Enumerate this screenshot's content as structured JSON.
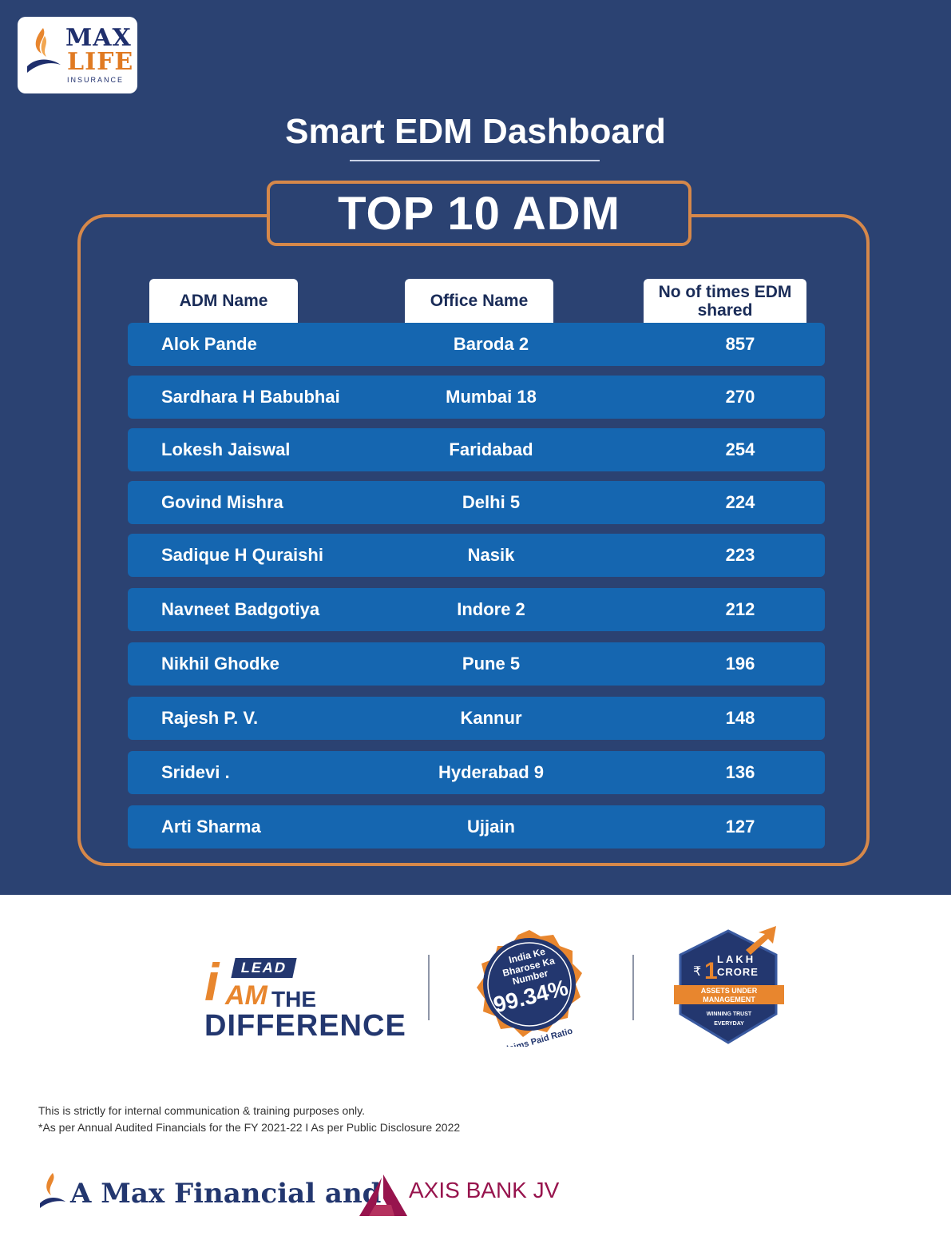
{
  "brand": {
    "logo_line1": "MAX",
    "logo_line2": "LIFE",
    "logo_line3": "INSURANCE"
  },
  "page_title": "Smart EDM Dashboard",
  "banner": "TOP 10 ADM",
  "table": {
    "headers": [
      "ADM Name",
      "Office Name",
      "No of times EDM shared"
    ],
    "rows": [
      {
        "name": "Alok Pande",
        "office": "Baroda 2",
        "count": "857"
      },
      {
        "name": "Sardhara H Babubhai",
        "office": "Mumbai 18",
        "count": "270"
      },
      {
        "name": "Lokesh Jaiswal",
        "office": "Faridabad",
        "count": "254"
      },
      {
        "name": "Govind Mishra",
        "office": "Delhi 5",
        "count": "224"
      },
      {
        "name": "Sadique H Quraishi",
        "office": "Nasik",
        "count": "223"
      },
      {
        "name": "Navneet Badgotiya",
        "office": "Indore 2",
        "count": "212"
      },
      {
        "name": "Nikhil Ghodke",
        "office": "Pune 5",
        "count": "196"
      },
      {
        "name": "Rajesh P. V.",
        "office": "Kannur",
        "count": "148"
      },
      {
        "name": "Sridevi .",
        "office": "Hyderabad 9",
        "count": "136"
      },
      {
        "name": "Arti Sharma",
        "office": "Ujjain",
        "count": "127"
      }
    ]
  },
  "campaign": {
    "badge": "LEAD",
    "i": "i",
    "am": "AM",
    "the": "THE",
    "difference": "DIFFERENCE"
  },
  "seal": {
    "line1": "India Ke",
    "line2": "Bharose Ka",
    "line3": "Number",
    "value": "99.34%",
    "caption": "Claims Paid Ratio"
  },
  "aum": {
    "currency": "₹",
    "amount": "1",
    "unit1": "LAKH",
    "unit2": "CRORE",
    "band1": "ASSETS UNDER",
    "band2": "MANAGEMENT",
    "tag1": "WINNING TRUST",
    "tag2": "EVERYDAY"
  },
  "disclaimer": {
    "line1": "This is strictly for internal communication & training purposes only.",
    "line2": "*As per Annual Audited Financials for the FY 2021-22 I As per Public Disclosure 2022"
  },
  "jv": {
    "text": "A Max Financial and",
    "partner": "AXIS BANK JV"
  },
  "colors": {
    "background": "#2b4272",
    "accent": "#d6884a",
    "row": "#1566b0"
  }
}
